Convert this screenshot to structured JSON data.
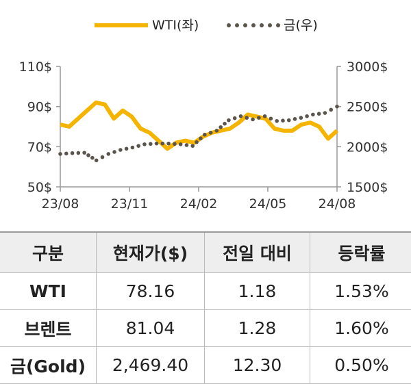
{
  "legend": {
    "wti": "WTI(좌)",
    "gold": "금(우)"
  },
  "colors": {
    "wti": "#f5b400",
    "gold": "#5a544c"
  },
  "chart_data": {
    "type": "line",
    "x_ticks": [
      "23/08",
      "23/11",
      "24/02",
      "24/05",
      "24/08"
    ],
    "y_left_ticks": [
      "50$",
      "70$",
      "90$",
      "110$"
    ],
    "y_right_ticks": [
      "1500$",
      "2000$",
      "2500$",
      "3000$"
    ],
    "ylim_left": [
      50,
      110
    ],
    "ylim_right": [
      1500,
      3000
    ],
    "series": [
      {
        "name": "WTI(좌)",
        "axis": "left",
        "x": [
          "23/08",
          "23/08",
          "23/09",
          "23/09",
          "23/09",
          "23/09",
          "23/10",
          "23/10",
          "23/10",
          "23/11",
          "23/11",
          "23/11",
          "23/12",
          "23/12",
          "23/12",
          "24/01",
          "24/01",
          "24/02",
          "24/02",
          "24/03",
          "24/03",
          "24/04",
          "24/04",
          "24/04",
          "24/05",
          "24/05",
          "24/06",
          "24/06",
          "24/07",
          "24/07",
          "24/08",
          "24/08"
        ],
        "values": [
          81,
          80,
          84,
          88,
          92,
          91,
          84,
          88,
          85,
          79,
          77,
          73,
          69,
          72,
          73,
          72,
          75,
          77,
          78,
          79,
          82,
          86,
          85,
          84,
          79,
          78,
          78,
          81,
          82,
          80,
          74,
          78
        ]
      },
      {
        "name": "금(우)",
        "axis": "right",
        "x": [
          "23/08",
          "23/09",
          "23/09",
          "23/10",
          "23/10",
          "23/11",
          "23/11",
          "23/12",
          "23/12",
          "24/01",
          "24/02",
          "24/02",
          "24/03",
          "24/03",
          "24/04",
          "24/04",
          "24/05",
          "24/05",
          "24/06",
          "24/06",
          "24/07",
          "24/07",
          "24/08",
          "24/08"
        ],
        "values": [
          1910,
          1920,
          1925,
          1830,
          1910,
          1960,
          1990,
          2030,
          2040,
          2040,
          2030,
          2010,
          2150,
          2200,
          2330,
          2380,
          2340,
          2380,
          2320,
          2330,
          2360,
          2400,
          2420,
          2500
        ]
      }
    ]
  },
  "table": {
    "headers": [
      "구분",
      "현재가($)",
      "전일 대비",
      "등락률"
    ],
    "rows": [
      [
        "WTI",
        "78.16",
        "1.18",
        "1.53%"
      ],
      [
        "브렌트",
        "81.04",
        "1.28",
        "1.60%"
      ],
      [
        "금(Gold)",
        "2,469.40",
        "12.30",
        "0.50%"
      ]
    ]
  }
}
